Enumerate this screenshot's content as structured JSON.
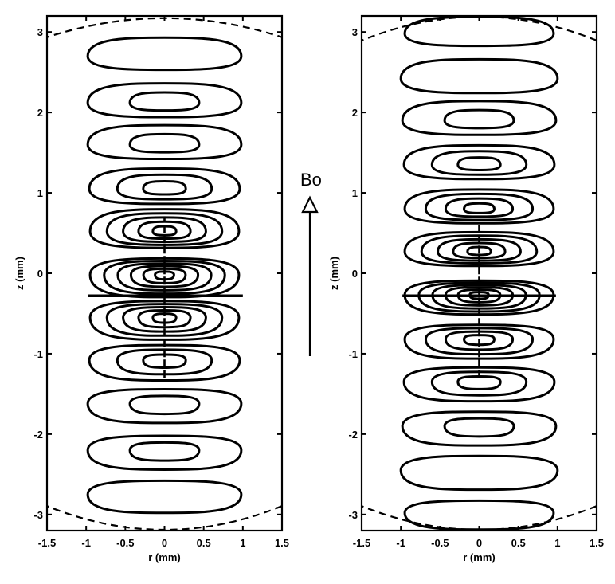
{
  "chart_data": [
    {
      "type": "contour",
      "panel": "left",
      "xlabel": "r (mm)",
      "ylabel": "z (mm)",
      "xlim": [
        -1.5,
        1.5
      ],
      "ylim": [
        -3.2,
        3.2
      ],
      "xticks": [
        "-1.5",
        "-1",
        "-0.5",
        "0",
        "0.5",
        "1",
        "1.5"
      ],
      "yticks": [
        "-3",
        "-2",
        "-1",
        "0",
        "1",
        "2",
        "3"
      ],
      "lobes": [
        {
          "z": 2.7,
          "half_width": 0.98,
          "half_height": 0.2,
          "levels": 1
        },
        {
          "z": 2.12,
          "half_width": 0.98,
          "half_height": 0.21,
          "levels": 2
        },
        {
          "z": 1.6,
          "half_width": 0.98,
          "half_height": 0.21,
          "levels": 2
        },
        {
          "z": 1.05,
          "half_width": 0.96,
          "half_height": 0.22,
          "levels": 3
        },
        {
          "z": 0.52,
          "half_width": 0.95,
          "half_height": 0.24,
          "levels": 5
        },
        {
          "z": -0.02,
          "half_width": 0.95,
          "half_height": 0.24,
          "levels": 6
        },
        {
          "z": -0.55,
          "half_width": 0.95,
          "half_height": 0.24,
          "levels": 5
        },
        {
          "z": -1.08,
          "half_width": 0.96,
          "half_height": 0.22,
          "levels": 3
        },
        {
          "z": -1.62,
          "half_width": 0.98,
          "half_height": 0.21,
          "levels": 2
        },
        {
          "z": -2.2,
          "half_width": 0.98,
          "half_height": 0.21,
          "levels": 2
        },
        {
          "z": -2.75,
          "half_width": 0.98,
          "half_height": 0.2,
          "levels": 1
        }
      ],
      "crosshair": {
        "z": -0.28,
        "r_from": -0.98,
        "r_to": 1.0
      },
      "vertical_line": {
        "r": 0,
        "z_from": -1.3,
        "z_to": 0.7
      },
      "boundary_top": {
        "z_edge": 2.98,
        "z_center": 3.3
      },
      "boundary_bottom": {
        "z_edge": -2.95,
        "z_center": -3.35
      }
    },
    {
      "type": "contour",
      "panel": "right",
      "xlabel": "r (mm)",
      "ylabel": "z (mm)",
      "xlim": [
        -1.5,
        1.5
      ],
      "ylim": [
        -3.2,
        3.2
      ],
      "xticks": [
        "-1.5",
        "-1",
        "-0.5",
        "0",
        "0.5",
        "1",
        "1.5"
      ],
      "yticks": [
        "-3",
        "-2",
        "-1",
        "0",
        "1",
        "2",
        "3"
      ],
      "lobes": [
        {
          "z": 2.98,
          "half_width": 0.95,
          "half_height": 0.18,
          "levels": 1
        },
        {
          "z": 2.42,
          "half_width": 1.0,
          "half_height": 0.21,
          "levels": 1
        },
        {
          "z": 1.9,
          "half_width": 0.98,
          "half_height": 0.21,
          "levels": 2
        },
        {
          "z": 1.35,
          "half_width": 0.96,
          "half_height": 0.21,
          "levels": 3
        },
        {
          "z": 0.8,
          "half_width": 0.95,
          "half_height": 0.21,
          "levels": 4
        },
        {
          "z": 0.27,
          "half_width": 0.95,
          "half_height": 0.21,
          "levels": 5
        },
        {
          "z": -0.27,
          "half_width": 0.95,
          "half_height": 0.21,
          "levels": 6
        },
        {
          "z": -0.82,
          "half_width": 0.95,
          "half_height": 0.21,
          "levels": 4
        },
        {
          "z": -1.35,
          "half_width": 0.96,
          "half_height": 0.21,
          "levels": 3
        },
        {
          "z": -1.9,
          "half_width": 0.98,
          "half_height": 0.21,
          "levels": 2
        },
        {
          "z": -2.45,
          "half_width": 1.0,
          "half_height": 0.21,
          "levels": 1
        },
        {
          "z": -2.98,
          "half_width": 0.95,
          "half_height": 0.18,
          "levels": 1
        }
      ],
      "crosshair": {
        "z": -0.28,
        "r_from": -0.98,
        "r_to": 0.98
      },
      "vertical_line": {
        "r": 0,
        "z_from": -1.3,
        "z_to": 0.6
      },
      "boundary_top": {
        "z_edge": 2.95,
        "z_center": 3.35
      },
      "boundary_bottom": {
        "z_edge": -2.95,
        "z_center": -3.35
      }
    }
  ],
  "annotation": {
    "label": "Bo",
    "description_icon": "up-arrow-icon"
  }
}
